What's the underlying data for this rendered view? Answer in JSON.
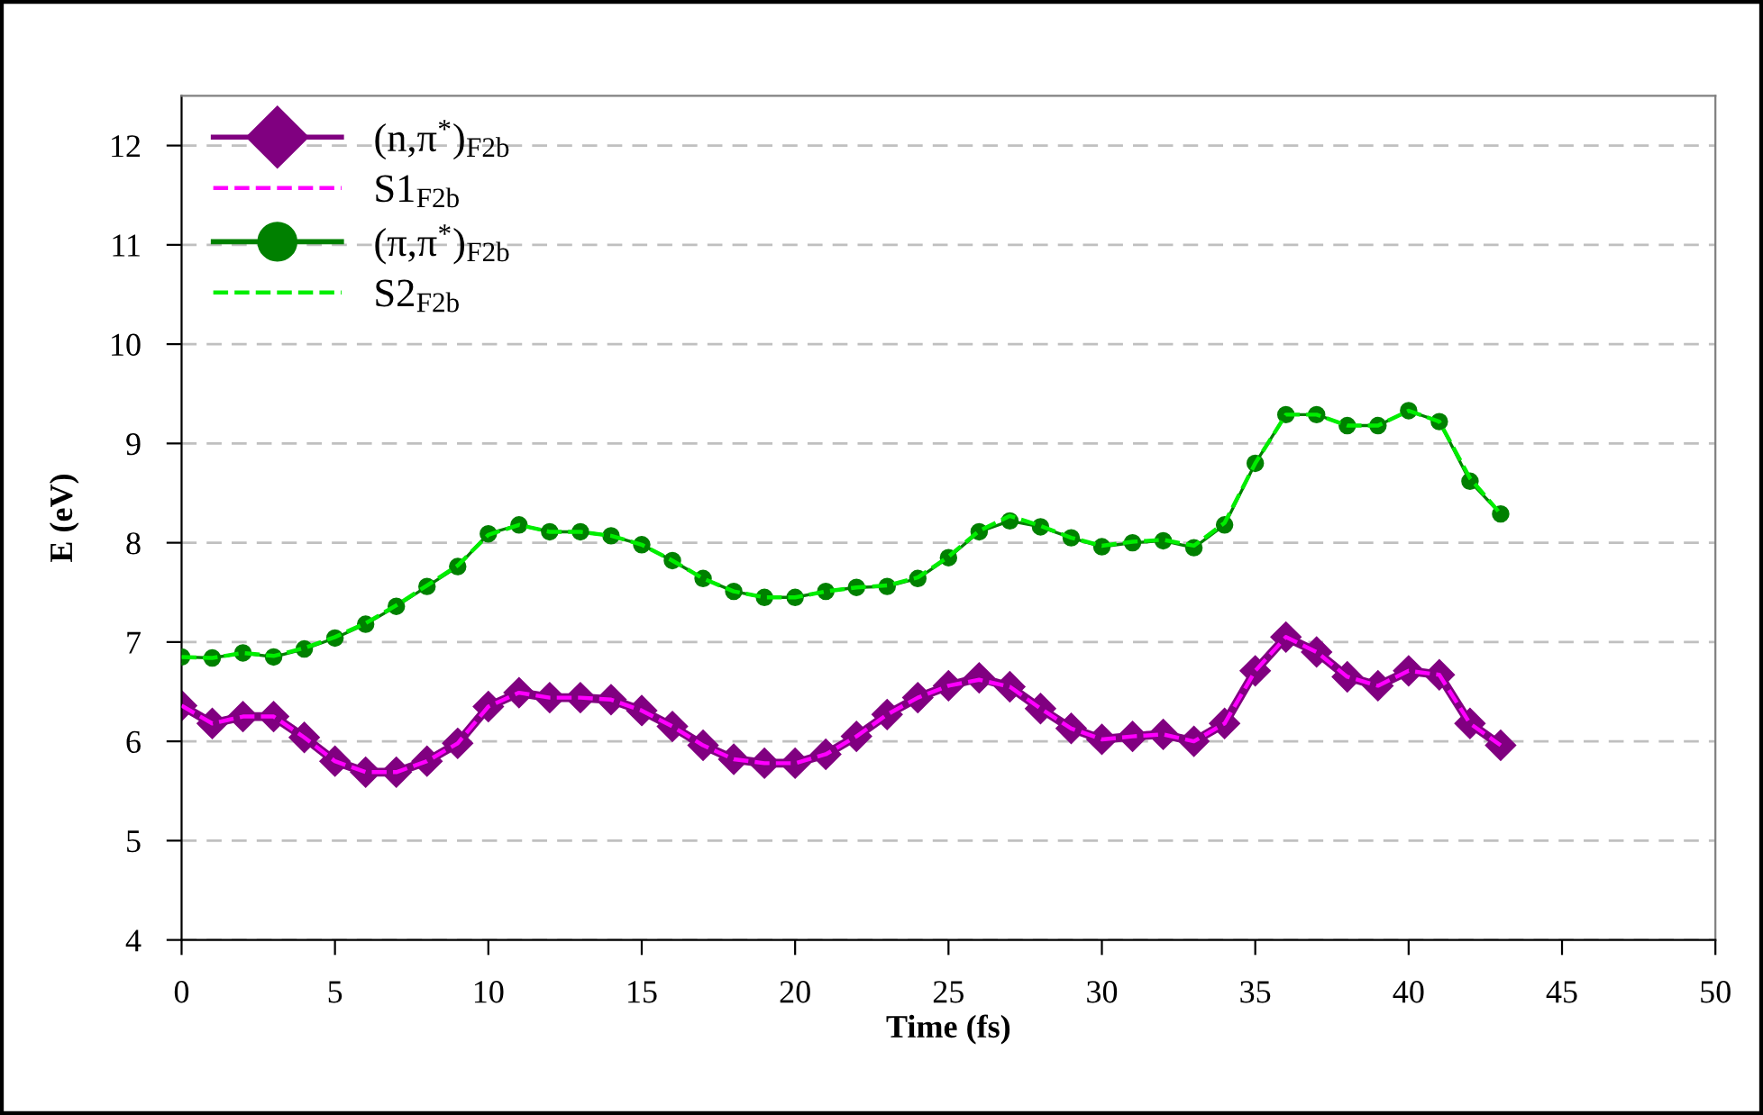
{
  "chart_data": {
    "type": "line",
    "xlabel": "Time (fs)",
    "ylabel": "E (eV)",
    "x": [
      0,
      1,
      2,
      3,
      4,
      5,
      6,
      7,
      8,
      9,
      10,
      11,
      12,
      13,
      14,
      15,
      16,
      17,
      18,
      19,
      20,
      21,
      22,
      23,
      24,
      25,
      26,
      27,
      28,
      29,
      30,
      31,
      32,
      33,
      34,
      35,
      36,
      37,
      38,
      39,
      40,
      41,
      42,
      43
    ],
    "series": [
      {
        "name": "(n,π$^{*}$)$_{F2b}$",
        "color": "#800080",
        "line_style": "solid",
        "marker": "diamond",
        "values": [
          6.36,
          6.18,
          6.25,
          6.25,
          6.04,
          5.8,
          5.69,
          5.69,
          5.8,
          5.98,
          6.35,
          6.49,
          6.44,
          6.44,
          6.42,
          6.31,
          6.15,
          5.96,
          5.82,
          5.78,
          5.78,
          5.87,
          6.05,
          6.27,
          6.44,
          6.56,
          6.64,
          6.55,
          6.33,
          6.13,
          6.02,
          6.05,
          6.07,
          6.0,
          6.18,
          6.71,
          7.05,
          6.9,
          6.65,
          6.56,
          6.71,
          6.67,
          6.18,
          5.96
        ]
      },
      {
        "name": "S1$_{F2b}$",
        "color": "#ff00ff",
        "line_style": "dashed",
        "marker": "none",
        "values": [
          6.36,
          6.18,
          6.25,
          6.25,
          6.04,
          5.8,
          5.69,
          5.69,
          5.8,
          5.98,
          6.35,
          6.49,
          6.44,
          6.44,
          6.42,
          6.31,
          6.15,
          5.96,
          5.82,
          5.78,
          5.78,
          5.87,
          6.05,
          6.27,
          6.44,
          6.56,
          6.62,
          6.55,
          6.33,
          6.13,
          6.02,
          6.05,
          6.07,
          6.0,
          6.18,
          6.71,
          7.05,
          6.9,
          6.65,
          6.56,
          6.71,
          6.67,
          6.18,
          5.96
        ]
      },
      {
        "name": "(π,π$^{*}$)$_{F2b}$",
        "color": "#008000",
        "line_style": "solid",
        "marker": "circle",
        "values": [
          6.85,
          6.84,
          6.89,
          6.85,
          6.93,
          7.04,
          7.18,
          7.36,
          7.56,
          7.76,
          8.09,
          8.18,
          8.11,
          8.11,
          8.07,
          7.98,
          7.82,
          7.64,
          7.51,
          7.45,
          7.45,
          7.51,
          7.55,
          7.56,
          7.64,
          7.85,
          8.11,
          8.22,
          8.16,
          8.05,
          7.96,
          8.0,
          8.02,
          7.95,
          8.18,
          8.8,
          9.29,
          9.29,
          9.18,
          9.18,
          9.33,
          9.22,
          8.62,
          8.29
        ]
      },
      {
        "name": "S2$_{F2b}$",
        "color": "#00ee00",
        "line_style": "dashed",
        "marker": "none",
        "values": [
          6.85,
          6.84,
          6.89,
          6.86,
          6.94,
          7.05,
          7.19,
          7.37,
          7.57,
          7.77,
          8.08,
          8.18,
          8.11,
          8.11,
          8.07,
          7.98,
          7.82,
          7.64,
          7.51,
          7.45,
          7.45,
          7.51,
          7.55,
          7.57,
          7.65,
          7.86,
          8.12,
          8.27,
          8.17,
          8.05,
          7.97,
          8.01,
          8.03,
          7.97,
          8.2,
          8.8,
          9.29,
          9.29,
          9.18,
          9.18,
          9.33,
          9.22,
          8.65,
          8.29
        ]
      }
    ],
    "xlim": [
      0,
      50
    ],
    "xticks": [
      0,
      5,
      10,
      15,
      20,
      25,
      30,
      35,
      40,
      45,
      50
    ],
    "ylim": [
      4,
      12.5
    ],
    "yticks": [
      4,
      5,
      6,
      7,
      8,
      9,
      10,
      11,
      12
    ],
    "grid": "y",
    "legend": "top left"
  }
}
